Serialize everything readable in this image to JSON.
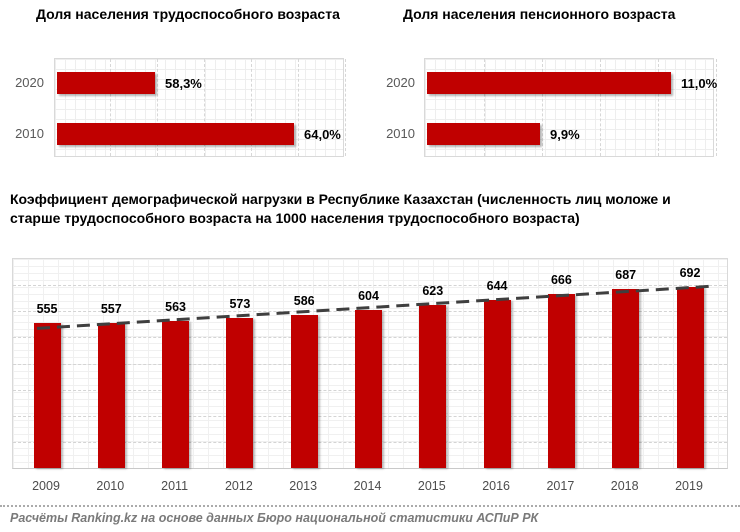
{
  "colors": {
    "bar": "#c00000",
    "trendline": "#3f3f3f",
    "grid_major": "#d7d7d7",
    "axis_text": "#595959",
    "footer_text": "#7a7a7a"
  },
  "chart_data": [
    {
      "type": "bar",
      "orientation": "horizontal",
      "title": "Доля населения трудоспособного возраста",
      "categories": [
        "2020",
        "2010"
      ],
      "values": [
        58.3,
        64.0
      ],
      "value_labels": [
        "58,3%",
        "64,0%"
      ],
      "xlim": [
        54.3,
        66.0
      ],
      "grid": "fine graph-paper grid with dashed vertical major gridlines",
      "legend": "none",
      "bar_color": "#c00000"
    },
    {
      "type": "bar",
      "orientation": "horizontal",
      "title": "Доля населения пенсионного возраста",
      "categories": [
        "2020",
        "2010"
      ],
      "values": [
        11.0,
        9.9
      ],
      "value_labels": [
        "11,0%",
        "9,9%"
      ],
      "xlim": [
        8.95,
        11.35
      ],
      "grid": "fine graph-paper grid with dashed vertical major gridlines",
      "legend": "none",
      "bar_color": "#c00000"
    },
    {
      "type": "bar",
      "orientation": "vertical",
      "title": "Коэффициент демографической нагрузки в Республике Казахстан (численность лиц моложе и старше трудоспособного возраста на 1000 населения трудоспособного возраста)",
      "title_lines": [
        "Коэффициент демографической нагрузки в Республике Казахстан (численность лиц моложе и",
        "старше трудоспособного возраста на 1000 населения трудоспособного возраста)"
      ],
      "categories": [
        "2009",
        "2010",
        "2011",
        "2012",
        "2013",
        "2014",
        "2015",
        "2016",
        "2017",
        "2018",
        "2019"
      ],
      "values": [
        555,
        557,
        563,
        573,
        586,
        604,
        623,
        644,
        666,
        687,
        692
      ],
      "ylim": [
        0,
        800
      ],
      "grid": "fine graph-paper grid with dashed horizontal major gridlines",
      "legend": "none",
      "trendline": {
        "type": "linear",
        "style": "dashed",
        "color": "#3f3f3f"
      },
      "bar_color": "#c00000"
    }
  ],
  "footer": {
    "source_note": "Расчёты Ranking.kz на основе данных Бюро национальной статистики АСПиР РК"
  }
}
